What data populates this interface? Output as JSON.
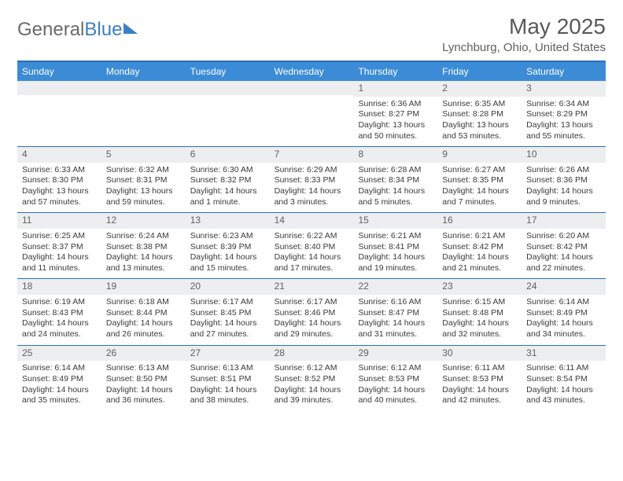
{
  "brand": {
    "part1": "General",
    "part2": "Blue"
  },
  "title": "May 2025",
  "location": "Lynchburg, Ohio, United States",
  "header_bg": "#3b8bd6",
  "rule_color": "#2d6fb5",
  "daynum_bg": "#eceef0",
  "text_color": "#3a3a3a",
  "day_names": [
    "Sunday",
    "Monday",
    "Tuesday",
    "Wednesday",
    "Thursday",
    "Friday",
    "Saturday"
  ],
  "weeks": [
    [
      null,
      null,
      null,
      null,
      {
        "n": "1",
        "sr": "Sunrise: 6:36 AM",
        "ss": "Sunset: 8:27 PM",
        "d1": "Daylight: 13 hours",
        "d2": "and 50 minutes."
      },
      {
        "n": "2",
        "sr": "Sunrise: 6:35 AM",
        "ss": "Sunset: 8:28 PM",
        "d1": "Daylight: 13 hours",
        "d2": "and 53 minutes."
      },
      {
        "n": "3",
        "sr": "Sunrise: 6:34 AM",
        "ss": "Sunset: 8:29 PM",
        "d1": "Daylight: 13 hours",
        "d2": "and 55 minutes."
      }
    ],
    [
      {
        "n": "4",
        "sr": "Sunrise: 6:33 AM",
        "ss": "Sunset: 8:30 PM",
        "d1": "Daylight: 13 hours",
        "d2": "and 57 minutes."
      },
      {
        "n": "5",
        "sr": "Sunrise: 6:32 AM",
        "ss": "Sunset: 8:31 PM",
        "d1": "Daylight: 13 hours",
        "d2": "and 59 minutes."
      },
      {
        "n": "6",
        "sr": "Sunrise: 6:30 AM",
        "ss": "Sunset: 8:32 PM",
        "d1": "Daylight: 14 hours",
        "d2": "and 1 minute."
      },
      {
        "n": "7",
        "sr": "Sunrise: 6:29 AM",
        "ss": "Sunset: 8:33 PM",
        "d1": "Daylight: 14 hours",
        "d2": "and 3 minutes."
      },
      {
        "n": "8",
        "sr": "Sunrise: 6:28 AM",
        "ss": "Sunset: 8:34 PM",
        "d1": "Daylight: 14 hours",
        "d2": "and 5 minutes."
      },
      {
        "n": "9",
        "sr": "Sunrise: 6:27 AM",
        "ss": "Sunset: 8:35 PM",
        "d1": "Daylight: 14 hours",
        "d2": "and 7 minutes."
      },
      {
        "n": "10",
        "sr": "Sunrise: 6:26 AM",
        "ss": "Sunset: 8:36 PM",
        "d1": "Daylight: 14 hours",
        "d2": "and 9 minutes."
      }
    ],
    [
      {
        "n": "11",
        "sr": "Sunrise: 6:25 AM",
        "ss": "Sunset: 8:37 PM",
        "d1": "Daylight: 14 hours",
        "d2": "and 11 minutes."
      },
      {
        "n": "12",
        "sr": "Sunrise: 6:24 AM",
        "ss": "Sunset: 8:38 PM",
        "d1": "Daylight: 14 hours",
        "d2": "and 13 minutes."
      },
      {
        "n": "13",
        "sr": "Sunrise: 6:23 AM",
        "ss": "Sunset: 8:39 PM",
        "d1": "Daylight: 14 hours",
        "d2": "and 15 minutes."
      },
      {
        "n": "14",
        "sr": "Sunrise: 6:22 AM",
        "ss": "Sunset: 8:40 PM",
        "d1": "Daylight: 14 hours",
        "d2": "and 17 minutes."
      },
      {
        "n": "15",
        "sr": "Sunrise: 6:21 AM",
        "ss": "Sunset: 8:41 PM",
        "d1": "Daylight: 14 hours",
        "d2": "and 19 minutes."
      },
      {
        "n": "16",
        "sr": "Sunrise: 6:21 AM",
        "ss": "Sunset: 8:42 PM",
        "d1": "Daylight: 14 hours",
        "d2": "and 21 minutes."
      },
      {
        "n": "17",
        "sr": "Sunrise: 6:20 AM",
        "ss": "Sunset: 8:42 PM",
        "d1": "Daylight: 14 hours",
        "d2": "and 22 minutes."
      }
    ],
    [
      {
        "n": "18",
        "sr": "Sunrise: 6:19 AM",
        "ss": "Sunset: 8:43 PM",
        "d1": "Daylight: 14 hours",
        "d2": "and 24 minutes."
      },
      {
        "n": "19",
        "sr": "Sunrise: 6:18 AM",
        "ss": "Sunset: 8:44 PM",
        "d1": "Daylight: 14 hours",
        "d2": "and 26 minutes."
      },
      {
        "n": "20",
        "sr": "Sunrise: 6:17 AM",
        "ss": "Sunset: 8:45 PM",
        "d1": "Daylight: 14 hours",
        "d2": "and 27 minutes."
      },
      {
        "n": "21",
        "sr": "Sunrise: 6:17 AM",
        "ss": "Sunset: 8:46 PM",
        "d1": "Daylight: 14 hours",
        "d2": "and 29 minutes."
      },
      {
        "n": "22",
        "sr": "Sunrise: 6:16 AM",
        "ss": "Sunset: 8:47 PM",
        "d1": "Daylight: 14 hours",
        "d2": "and 31 minutes."
      },
      {
        "n": "23",
        "sr": "Sunrise: 6:15 AM",
        "ss": "Sunset: 8:48 PM",
        "d1": "Daylight: 14 hours",
        "d2": "and 32 minutes."
      },
      {
        "n": "24",
        "sr": "Sunrise: 6:14 AM",
        "ss": "Sunset: 8:49 PM",
        "d1": "Daylight: 14 hours",
        "d2": "and 34 minutes."
      }
    ],
    [
      {
        "n": "25",
        "sr": "Sunrise: 6:14 AM",
        "ss": "Sunset: 8:49 PM",
        "d1": "Daylight: 14 hours",
        "d2": "and 35 minutes."
      },
      {
        "n": "26",
        "sr": "Sunrise: 6:13 AM",
        "ss": "Sunset: 8:50 PM",
        "d1": "Daylight: 14 hours",
        "d2": "and 36 minutes."
      },
      {
        "n": "27",
        "sr": "Sunrise: 6:13 AM",
        "ss": "Sunset: 8:51 PM",
        "d1": "Daylight: 14 hours",
        "d2": "and 38 minutes."
      },
      {
        "n": "28",
        "sr": "Sunrise: 6:12 AM",
        "ss": "Sunset: 8:52 PM",
        "d1": "Daylight: 14 hours",
        "d2": "and 39 minutes."
      },
      {
        "n": "29",
        "sr": "Sunrise: 6:12 AM",
        "ss": "Sunset: 8:53 PM",
        "d1": "Daylight: 14 hours",
        "d2": "and 40 minutes."
      },
      {
        "n": "30",
        "sr": "Sunrise: 6:11 AM",
        "ss": "Sunset: 8:53 PM",
        "d1": "Daylight: 14 hours",
        "d2": "and 42 minutes."
      },
      {
        "n": "31",
        "sr": "Sunrise: 6:11 AM",
        "ss": "Sunset: 8:54 PM",
        "d1": "Daylight: 14 hours",
        "d2": "and 43 minutes."
      }
    ]
  ]
}
